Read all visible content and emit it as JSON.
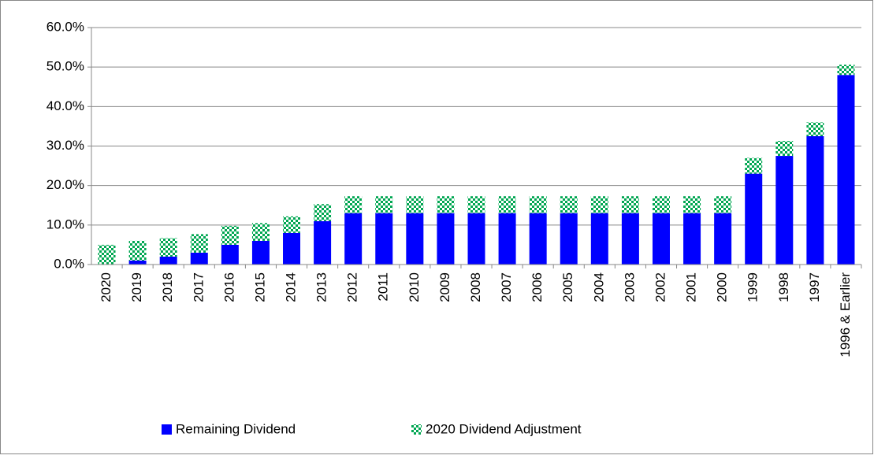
{
  "chart_data": {
    "type": "stacked-bar",
    "categories": [
      "2020",
      "2019",
      "2018",
      "2017",
      "2016",
      "2015",
      "2014",
      "2013",
      "2012",
      "2011",
      "2010",
      "2009",
      "2008",
      "2007",
      "2006",
      "2005",
      "2004",
      "2003",
      "2002",
      "2001",
      "2000",
      "1999",
      "1998",
      "1997",
      "1996 & Earlier"
    ],
    "series": [
      {
        "name": "Remaining Dividend",
        "color": "#0000ff",
        "pattern": "solid",
        "values": [
          0,
          1,
          2,
          3,
          5,
          6,
          8,
          11,
          13,
          13,
          13,
          13,
          13,
          13,
          13,
          13,
          13,
          13,
          13,
          13,
          13,
          23,
          27.5,
          32.5,
          48
        ]
      },
      {
        "name": "2020 Dividend Adjustment",
        "color": "#00a651",
        "pattern": "checker",
        "values": [
          5,
          5,
          4.7,
          4.7,
          4.8,
          4.5,
          4.2,
          4.3,
          4.3,
          4.3,
          4.3,
          4.3,
          4.3,
          4.3,
          4.3,
          4.3,
          4.3,
          4.3,
          4.3,
          4.3,
          4.3,
          4,
          3.8,
          3.5,
          2.6
        ]
      }
    ],
    "ylim": [
      0,
      60
    ],
    "yticks": [
      {
        "value": 0,
        "label": "0.0%"
      },
      {
        "value": 10,
        "label": "10.0%"
      },
      {
        "value": 20,
        "label": "20.0%"
      },
      {
        "value": 30,
        "label": "30.0%"
      },
      {
        "value": 40,
        "label": "40.0%"
      },
      {
        "value": 50,
        "label": "50.0%"
      },
      {
        "value": 60,
        "label": "60.0%"
      }
    ],
    "grid": true,
    "legend": "bottom"
  }
}
